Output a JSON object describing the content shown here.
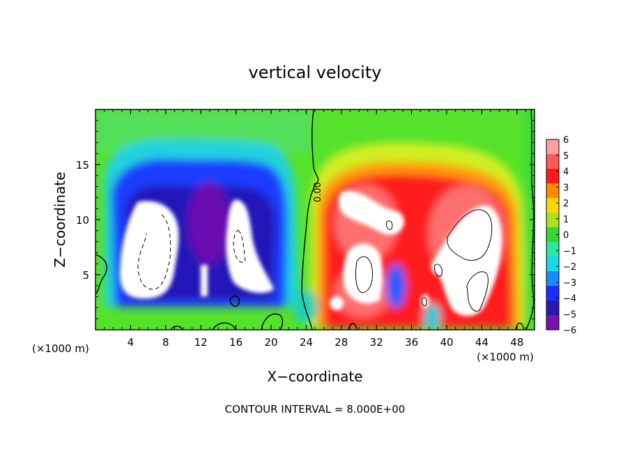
{
  "chart_data": {
    "type": "heatmap",
    "title": "vertical velocity",
    "xlabel": "X−coordinate",
    "ylabel": "Z−coordinate",
    "x_unit_left": "(×1000 m)",
    "x_unit_right": "(×1000 m)",
    "footer": "CONTOUR INTERVAL = 8.000E+00",
    "xlim": [
      0,
      50
    ],
    "ylim": [
      0,
      20
    ],
    "x_ticks": [
      4,
      8,
      12,
      16,
      20,
      24,
      28,
      32,
      36,
      40,
      44,
      48
    ],
    "y_ticks": [
      5,
      10,
      15
    ],
    "contour_label": "0.00",
    "colorbar": {
      "levels": [
        6,
        5,
        4,
        3,
        2,
        1,
        0,
        -1,
        -2,
        -3,
        -4,
        -5,
        -6
      ],
      "labels": [
        "6",
        "5",
        "4",
        "3",
        "2",
        "1",
        "0",
        "−1",
        "−2",
        "−3",
        "−4",
        "−5",
        "−6"
      ],
      "colors": [
        "#ffa0a0",
        "#ff5a5a",
        "#ff1a1a",
        "#ff8c00",
        "#ffd700",
        "#a8e21a",
        "#33d633",
        "#2ee6a0",
        "#18d8e8",
        "#1a8cff",
        "#1a2eff",
        "#2a18b4",
        "#7a10b0"
      ]
    },
    "features": [
      {
        "name": "downdraft-left",
        "x": 6.5,
        "z": 8,
        "w": -14
      },
      {
        "name": "downdraft-right",
        "x": 16.5,
        "z": 8,
        "w": -14
      },
      {
        "name": "updraft-upper",
        "x": 34,
        "z": 10,
        "w": 10
      },
      {
        "name": "updraft-lower",
        "x": 30.5,
        "z": 5,
        "w": 10
      },
      {
        "name": "updraft-right",
        "x": 43,
        "z": 7,
        "w": 12
      }
    ]
  }
}
